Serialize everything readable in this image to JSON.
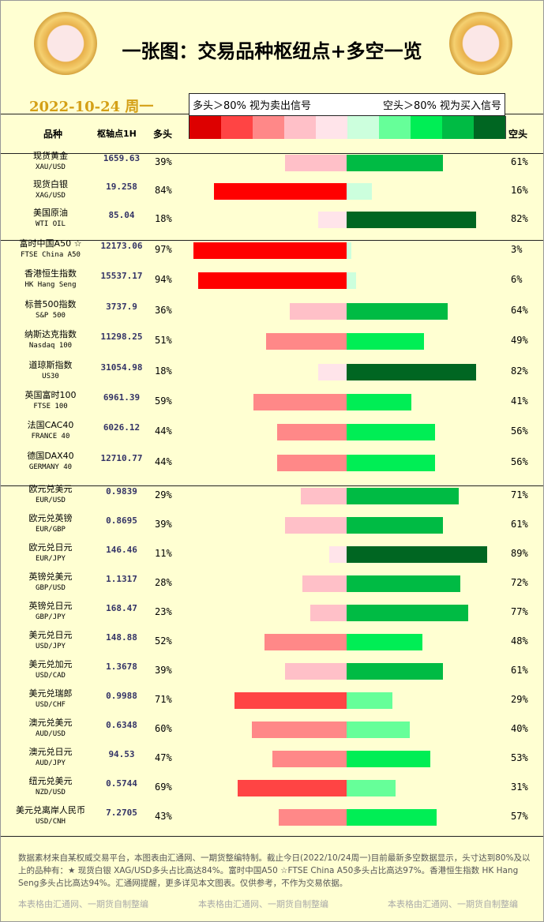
{
  "header": {
    "title": "一张图：交易品种枢纽点+多空一览",
    "date": "2022-10-24 周一"
  },
  "legend": {
    "sell_note": "多头＞80% 视为卖出信号",
    "buy_note": "空头＞80% 视为买入信号",
    "colors": [
      "#dd0000",
      "#ff4444",
      "#ff8888",
      "#ffc0c8",
      "#ffe4ea",
      "#ccffdd",
      "#66ff99",
      "#00ee55",
      "#00bb44",
      "#006622"
    ]
  },
  "table": {
    "columns": {
      "name": "品种",
      "pivot": "枢轴点1H",
      "long": "多头",
      "short": "空头"
    },
    "groups": [
      {
        "rows": [
          {
            "name": "现货黄金",
            "code": "XAU/USD",
            "pivot": "1659.63",
            "long": {
              "value": 39,
              "label": "39%",
              "color": "#ffc0c8"
            },
            "short": {
              "value": 61,
              "label": "61%",
              "color": "#00bb44"
            }
          },
          {
            "name": "现货白银",
            "code": "XAG/USD",
            "pivot": "19.258",
            "long": {
              "value": 84,
              "label": "84%",
              "color": "#ff0000"
            },
            "short": {
              "value": 16,
              "label": "16%",
              "color": "#ccffdd"
            }
          },
          {
            "name": "美国原油",
            "code": "WTI OIL",
            "pivot": "85.04",
            "long": {
              "value": 18,
              "label": "18%",
              "color": "#ffe4ea"
            },
            "short": {
              "value": 82,
              "label": "82%",
              "color": "#006622"
            }
          }
        ]
      },
      {
        "rows": [
          {
            "name": "富时中国A50 ☆",
            "code": "FTSE China A50",
            "pivot": "12173.06",
            "long": {
              "value": 97,
              "label": "97%",
              "color": "#ff0000"
            },
            "short": {
              "value": 3,
              "label": "3%",
              "color": "#ccffdd"
            }
          },
          {
            "name": "香港恒生指数",
            "code": "HK Hang Seng",
            "pivot": "15537.17",
            "long": {
              "value": 94,
              "label": "94%",
              "color": "#ff0000"
            },
            "short": {
              "value": 6,
              "label": "6%",
              "color": "#ccffdd"
            }
          },
          {
            "name": "标普500指数",
            "code": "S&P 500",
            "pivot": "3737.9",
            "long": {
              "value": 36,
              "label": "36%",
              "color": "#ffc0c8"
            },
            "short": {
              "value": 64,
              "label": "64%",
              "color": "#00bb44"
            }
          },
          {
            "name": "纳斯达克指数",
            "code": "Nasdaq 100",
            "pivot": "11298.25",
            "long": {
              "value": 51,
              "label": "51%",
              "color": "#ff8888"
            },
            "short": {
              "value": 49,
              "label": "49%",
              "color": "#00ee55"
            }
          },
          {
            "name": "道琼斯指数",
            "code": "US30",
            "pivot": "31054.98",
            "long": {
              "value": 18,
              "label": "18%",
              "color": "#ffe4ea"
            },
            "short": {
              "value": 82,
              "label": "82%",
              "color": "#006622"
            }
          },
          {
            "name": "英国富时100",
            "code": "FTSE 100",
            "pivot": "6961.39",
            "long": {
              "value": 59,
              "label": "59%",
              "color": "#ff8888"
            },
            "short": {
              "value": 41,
              "label": "41%",
              "color": "#00ee55"
            }
          },
          {
            "name": "法国CAC40",
            "code": "FRANCE 40",
            "pivot": "6026.12",
            "long": {
              "value": 44,
              "label": "44%",
              "color": "#ff8888"
            },
            "short": {
              "value": 56,
              "label": "56%",
              "color": "#00ee55"
            }
          },
          {
            "name": "德国DAX40",
            "code": "GERMANY 40",
            "pivot": "12710.77",
            "long": {
              "value": 44,
              "label": "44%",
              "color": "#ff8888"
            },
            "short": {
              "value": 56,
              "label": "56%",
              "color": "#00ee55"
            }
          }
        ]
      },
      {
        "rows": [
          {
            "name": "欧元兑美元",
            "code": "EUR/USD",
            "pivot": "0.9839",
            "long": {
              "value": 29,
              "label": "29%",
              "color": "#ffc0c8"
            },
            "short": {
              "value": 71,
              "label": "71%",
              "color": "#00bb44"
            }
          },
          {
            "name": "欧元兑英镑",
            "code": "EUR/GBP",
            "pivot": "0.8695",
            "long": {
              "value": 39,
              "label": "39%",
              "color": "#ffc0c8"
            },
            "short": {
              "value": 61,
              "label": "61%",
              "color": "#00bb44"
            }
          },
          {
            "name": "欧元兑日元",
            "code": "EUR/JPY",
            "pivot": "146.46",
            "long": {
              "value": 11,
              "label": "11%",
              "color": "#ffe4ea"
            },
            "short": {
              "value": 89,
              "label": "89%",
              "color": "#006622"
            }
          },
          {
            "name": "英镑兑美元",
            "code": "GBP/USD",
            "pivot": "1.1317",
            "long": {
              "value": 28,
              "label": "28%",
              "color": "#ffc0c8"
            },
            "short": {
              "value": 72,
              "label": "72%",
              "color": "#00bb44"
            }
          },
          {
            "name": "英镑兑日元",
            "code": "GBP/JPY",
            "pivot": "168.47",
            "long": {
              "value": 23,
              "label": "23%",
              "color": "#ffc0c8"
            },
            "short": {
              "value": 77,
              "label": "77%",
              "color": "#00bb44"
            }
          },
          {
            "name": "美元兑日元",
            "code": "USD/JPY",
            "pivot": "148.88",
            "long": {
              "value": 52,
              "label": "52%",
              "color": "#ff8888"
            },
            "short": {
              "value": 48,
              "label": "48%",
              "color": "#00ee55"
            }
          },
          {
            "name": "美元兑加元",
            "code": "USD/CAD",
            "pivot": "1.3678",
            "long": {
              "value": 39,
              "label": "39%",
              "color": "#ffc0c8"
            },
            "short": {
              "value": 61,
              "label": "61%",
              "color": "#00bb44"
            }
          },
          {
            "name": "美元兑瑞郎",
            "code": "USD/CHF",
            "pivot": "0.9988",
            "long": {
              "value": 71,
              "label": "71%",
              "color": "#ff4444"
            },
            "short": {
              "value": 29,
              "label": "29%",
              "color": "#66ff99"
            }
          },
          {
            "name": "澳元兑美元",
            "code": "AUD/USD",
            "pivot": "0.6348",
            "long": {
              "value": 60,
              "label": "60%",
              "color": "#ff8888"
            },
            "short": {
              "value": 40,
              "label": "40%",
              "color": "#66ff99"
            }
          },
          {
            "name": "澳元兑日元",
            "code": "AUD/JPY",
            "pivot": "94.53",
            "long": {
              "value": 47,
              "label": "47%",
              "color": "#ff8888"
            },
            "short": {
              "value": 53,
              "label": "53%",
              "color": "#00ee55"
            }
          },
          {
            "name": "纽元兑美元",
            "code": "NZD/USD",
            "pivot": "0.5744",
            "long": {
              "value": 69,
              "label": "69%",
              "color": "#ff4444"
            },
            "short": {
              "value": 31,
              "label": "31%",
              "color": "#66ff99"
            }
          },
          {
            "name": "美元兑离岸人民币",
            "code": "USD/CNH",
            "pivot": "7.2705",
            "long": {
              "value": 43,
              "label": "43%",
              "color": "#ff8888"
            },
            "short": {
              "value": 57,
              "label": "57%",
              "color": "#00ee55"
            }
          }
        ]
      }
    ]
  },
  "footer": {
    "note": "数据素材来自某权威交易平台，本图表由汇通网、一期货整编特制。截止今日(2022/10/24周一)目前最新多空数据显示，头寸达到80%及以上的品种有：★ 现货白银 XAG/USD多头占比高达84%。富时中国A50 ☆FTSE China A50多头占比高达97%。香港恒生指数 HK Hang Seng多头占比高达94%。汇通网提醒，更多详见本文图表。仅供参考，不作为交易依据。",
    "watermarks": [
      "本表格由汇通网、一期货自制整编",
      "本表格由汇通网、一期货自制整编",
      "本表格由汇通网、一期货自制整编"
    ]
  }
}
